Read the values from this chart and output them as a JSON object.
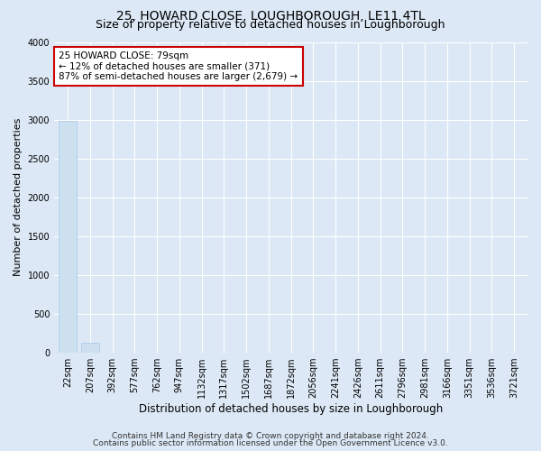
{
  "title": "25, HOWARD CLOSE, LOUGHBOROUGH, LE11 4TL",
  "subtitle": "Size of property relative to detached houses in Loughborough",
  "xlabel": "Distribution of detached houses by size in Loughborough",
  "ylabel": "Number of detached properties",
  "categories": [
    "22sqm",
    "207sqm",
    "392sqm",
    "577sqm",
    "762sqm",
    "947sqm",
    "1132sqm",
    "1317sqm",
    "1502sqm",
    "1687sqm",
    "1872sqm",
    "2056sqm",
    "2241sqm",
    "2426sqm",
    "2611sqm",
    "2796sqm",
    "2981sqm",
    "3166sqm",
    "3351sqm",
    "3536sqm",
    "3721sqm"
  ],
  "values": [
    2980,
    130,
    3,
    1,
    1,
    1,
    1,
    1,
    1,
    1,
    1,
    1,
    1,
    1,
    1,
    1,
    1,
    1,
    1,
    1,
    1
  ],
  "bar_color": "#cce0f0",
  "bar_edge_color": "#a8c8e8",
  "annotation_box_text": "25 HOWARD CLOSE: 79sqm\n← 12% of detached houses are smaller (371)\n87% of semi-detached houses are larger (2,679) →",
  "annotation_box_color": "#ffffff",
  "annotation_box_edge_color": "#cc0000",
  "ylim": [
    0,
    4000
  ],
  "yticks": [
    0,
    500,
    1000,
    1500,
    2000,
    2500,
    3000,
    3500,
    4000
  ],
  "background_color": "#dce8f5",
  "plot_bg_color": "#dce8f5",
  "footer_line1": "Contains HM Land Registry data © Crown copyright and database right 2024.",
  "footer_line2": "Contains public sector information licensed under the Open Government Licence v3.0.",
  "title_fontsize": 10,
  "subtitle_fontsize": 9,
  "xlabel_fontsize": 8.5,
  "ylabel_fontsize": 8,
  "tick_fontsize": 7,
  "annotation_fontsize": 7.5,
  "footer_fontsize": 6.5
}
